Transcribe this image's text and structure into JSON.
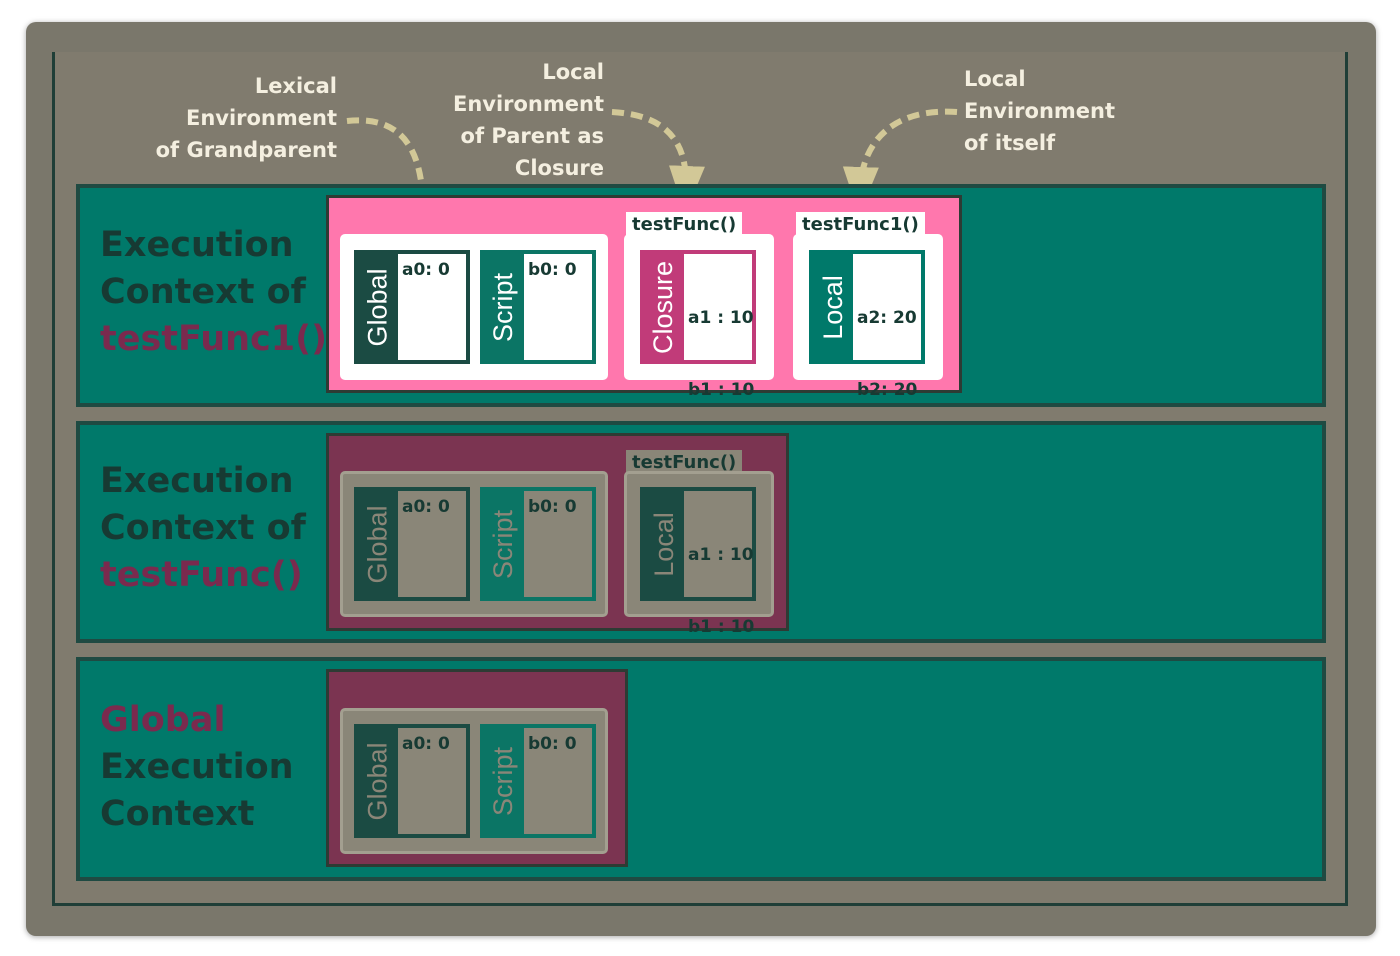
{
  "annotations": [
    {
      "lines": [
        "Lexical",
        "Environment",
        "of Grandparent"
      ]
    },
    {
      "lines": [
        "Local",
        "Environment",
        "of Parent as",
        "Closure"
      ]
    },
    {
      "lines": [
        "Local",
        "Environment",
        "of itself"
      ]
    }
  ],
  "contexts": [
    {
      "title_lines": [
        {
          "text": "Execution",
          "highlight": false
        },
        {
          "text": "Context of",
          "highlight": false
        },
        {
          "text": "testFunc1()",
          "highlight": true
        }
      ],
      "scopes": [
        {
          "label": "Global",
          "values": [
            "a0: 0"
          ]
        },
        {
          "label": "Script",
          "values": [
            "b0: 0"
          ]
        },
        {
          "tab": "testFunc()",
          "label": "Closure",
          "values": [
            "a1 : 10",
            "b1 : 10"
          ]
        },
        {
          "tab": "testFunc1()",
          "label": "Local",
          "values": [
            "a2: 20",
            "b2: 20"
          ]
        }
      ]
    },
    {
      "title_lines": [
        {
          "text": "Execution",
          "highlight": false
        },
        {
          "text": "Context of",
          "highlight": false
        },
        {
          "text": "testFunc()",
          "highlight": true
        }
      ],
      "scopes": [
        {
          "label": "Global",
          "values": [
            "a0: 0"
          ]
        },
        {
          "label": "Script",
          "values": [
            "b0: 0"
          ]
        },
        {
          "tab": "testFunc()",
          "label": "Local",
          "values": [
            "a1 : 10",
            "b1 : 10"
          ]
        }
      ]
    },
    {
      "title_lines": [
        {
          "text": "Global",
          "highlight": true
        },
        {
          "text": "Execution",
          "highlight": false
        },
        {
          "text": "Context",
          "highlight": false
        }
      ],
      "scopes": [
        {
          "label": "Global",
          "values": [
            "a0: 0"
          ]
        },
        {
          "label": "Script",
          "values": [
            "b0: 0"
          ]
        }
      ]
    }
  ],
  "colors": {
    "frame": "#7a776b",
    "band": "#00796a",
    "band_dark": "#1f4a42",
    "active_env": "#ff77ad",
    "inactive_env": "#7b3451",
    "panel_light": "#ffffff",
    "panel_gray": "#8a8678",
    "global_scope": "#1b4b43",
    "script_scope": "#0b7565",
    "closure_scope": "#c13b79",
    "local_scope": "#00796a",
    "title_text": "#173a33",
    "title_highlight": "#7a2a4e",
    "annotation_text": "#f4efe0",
    "arrow": "#d2c897"
  },
  "icons": {
    "annotation_pointer": "dashed-curved-arrow"
  }
}
